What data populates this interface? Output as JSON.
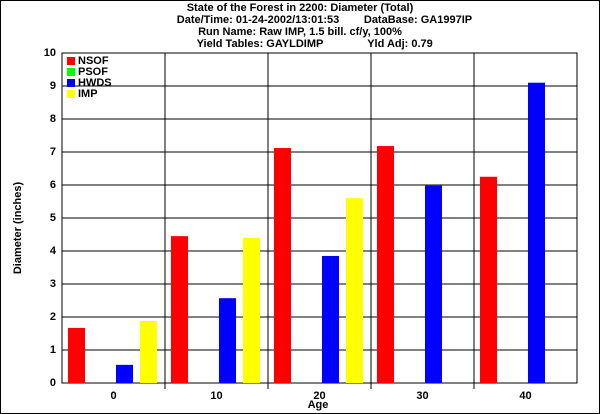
{
  "chart_data": {
    "type": "bar",
    "title": "State of the Forest in 2200: Diameter (Total)",
    "header_lines": [
      [
        "Date/Time: 01-24-2002/13:01:53",
        "DataBase: GA1997IP"
      ],
      [
        "Run Name: Raw IMP, 1.5 bill. cf/y, 100%"
      ],
      [
        "Yield Tables: GAYLDIMP",
        "Yld Adj: 0.79"
      ]
    ],
    "x_label": "Age",
    "y_label": "Diameter (inches)",
    "categories": [
      "0",
      "10",
      "20",
      "30",
      "40"
    ],
    "series": [
      {
        "name": "NSOF",
        "color": "#ff0000",
        "values": [
          1.67,
          4.45,
          7.12,
          7.18,
          6.25
        ]
      },
      {
        "name": "PSOF",
        "color": "#00ff00",
        "values": [
          0,
          0,
          0,
          0,
          0
        ]
      },
      {
        "name": "HWDS",
        "color": "#0000ff",
        "values": [
          0.55,
          2.57,
          3.85,
          5.98,
          9.1
        ]
      },
      {
        "name": "IMP",
        "color": "#ffff00",
        "values": [
          1.88,
          4.4,
          5.6,
          0,
          0
        ]
      }
    ],
    "ylim": [
      0,
      10
    ],
    "yticks": [
      0,
      1,
      2,
      3,
      4,
      5,
      6,
      7,
      8,
      9,
      10
    ],
    "grid": true,
    "legend": "top-left"
  }
}
